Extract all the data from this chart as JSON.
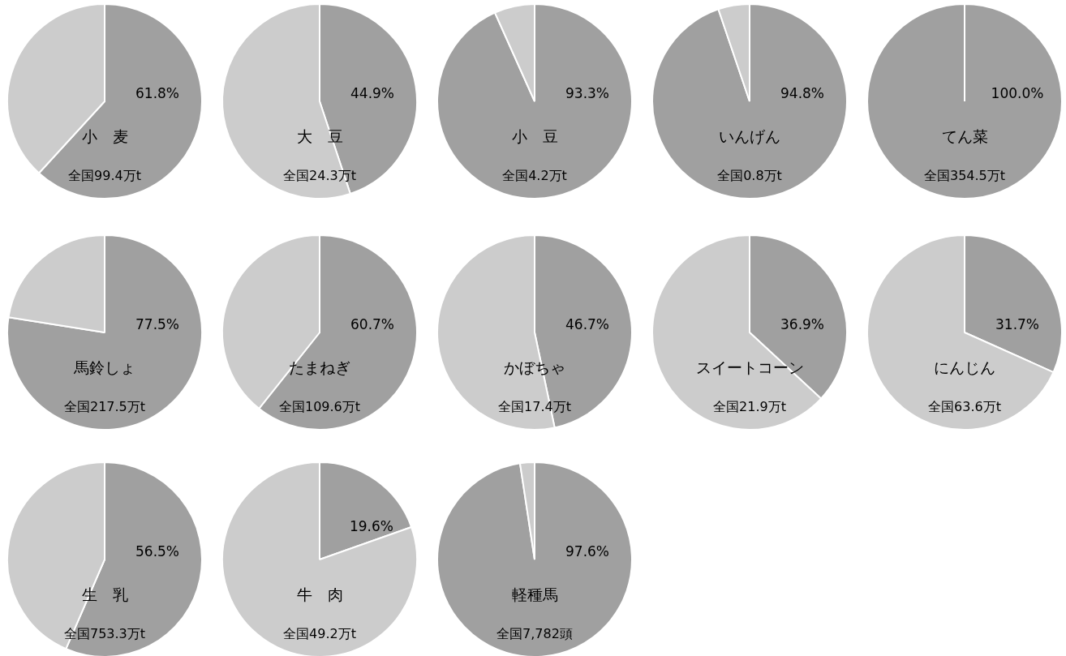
{
  "chart_data": [
    {
      "type": "pie",
      "title": "小　麦",
      "categories": [
        null,
        null
      ],
      "values": [
        61.8,
        38.2
      ],
      "colors": [
        "#a0a0a0",
        "#cccccc"
      ],
      "value_labels": [
        "61.8%",
        null
      ],
      "annotations": [
        "全国99.4万t"
      ]
    },
    {
      "type": "pie",
      "title": "大　豆",
      "categories": [
        null,
        null
      ],
      "values": [
        44.9,
        55.1
      ],
      "colors": [
        "#a0a0a0",
        "#cccccc"
      ],
      "value_labels": [
        "44.9%",
        null
      ],
      "annotations": [
        "全国24.3万t"
      ]
    },
    {
      "type": "pie",
      "title": "小　豆",
      "categories": [
        null,
        null
      ],
      "values": [
        93.3,
        6.7
      ],
      "colors": [
        "#a0a0a0",
        "#cccccc"
      ],
      "value_labels": [
        "93.3%",
        null
      ],
      "annotations": [
        "全国4.2万t"
      ]
    },
    {
      "type": "pie",
      "title": "いんげん",
      "categories": [
        null,
        null
      ],
      "values": [
        94.8,
        5.2
      ],
      "colors": [
        "#a0a0a0",
        "#cccccc"
      ],
      "value_labels": [
        "94.8%",
        null
      ],
      "annotations": [
        "全国0.8万t"
      ]
    },
    {
      "type": "pie",
      "title": "てん菜",
      "categories": [
        null,
        null
      ],
      "values": [
        100.0,
        0.0
      ],
      "colors": [
        "#a0a0a0",
        "#cccccc"
      ],
      "value_labels": [
        "100.0%",
        null
      ],
      "annotations": [
        "全国354.5万t"
      ]
    },
    {
      "type": "pie",
      "title": "馬鈴しょ",
      "categories": [
        null,
        null
      ],
      "values": [
        77.5,
        22.5
      ],
      "colors": [
        "#a0a0a0",
        "#cccccc"
      ],
      "value_labels": [
        "77.5%",
        null
      ],
      "annotations": [
        "全国217.5万t"
      ]
    },
    {
      "type": "pie",
      "title": "たまねぎ",
      "categories": [
        null,
        null
      ],
      "values": [
        60.7,
        39.3
      ],
      "colors": [
        "#a0a0a0",
        "#cccccc"
      ],
      "value_labels": [
        "60.7%",
        null
      ],
      "annotations": [
        "全国109.6万t"
      ]
    },
    {
      "type": "pie",
      "title": "かぼちゃ",
      "categories": [
        null,
        null
      ],
      "values": [
        46.7,
        53.3
      ],
      "colors": [
        "#a0a0a0",
        "#cccccc"
      ],
      "value_labels": [
        "46.7%",
        null
      ],
      "annotations": [
        "全国17.4万t"
      ]
    },
    {
      "type": "pie",
      "title": "スイートコーン",
      "categories": [
        null,
        null
      ],
      "values": [
        36.9,
        63.1
      ],
      "colors": [
        "#a0a0a0",
        "#cccccc"
      ],
      "value_labels": [
        "36.9%",
        null
      ],
      "annotations": [
        "全国21.9万t"
      ]
    },
    {
      "type": "pie",
      "title": "にんじん",
      "categories": [
        null,
        null
      ],
      "values": [
        31.7,
        68.3
      ],
      "colors": [
        "#a0a0a0",
        "#cccccc"
      ],
      "value_labels": [
        "31.7%",
        null
      ],
      "annotations": [
        "全国63.6万t"
      ]
    },
    {
      "type": "pie",
      "title": "生　乳",
      "categories": [
        null,
        null
      ],
      "values": [
        56.5,
        43.5
      ],
      "colors": [
        "#a0a0a0",
        "#cccccc"
      ],
      "value_labels": [
        "56.5%",
        null
      ],
      "annotations": [
        "全国753.3万t"
      ]
    },
    {
      "type": "pie",
      "title": "牛　肉",
      "categories": [
        null,
        null
      ],
      "values": [
        19.6,
        80.4
      ],
      "colors": [
        "#a0a0a0",
        "#cccccc"
      ],
      "value_labels": [
        "19.6%",
        null
      ],
      "annotations": [
        "全国49.2万t"
      ]
    },
    {
      "type": "pie",
      "title": "軽種馬",
      "categories": [
        null,
        null
      ],
      "values": [
        97.6,
        2.4
      ],
      "colors": [
        "#a0a0a0",
        "#cccccc"
      ],
      "value_labels": [
        "97.6%",
        null
      ],
      "annotations": [
        "全国7,782頭"
      ]
    }
  ]
}
